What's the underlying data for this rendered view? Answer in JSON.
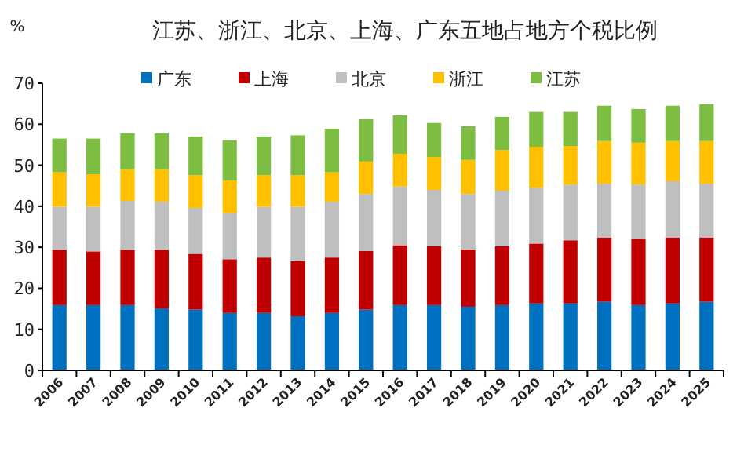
{
  "chart_data": {
    "type": "bar",
    "stacked": true,
    "title": "江苏、浙江、北京、上海、广东五地占地方个税比例",
    "ylabel": "%",
    "legend": "top",
    "grid": false,
    "categories": [
      "2006",
      "2007",
      "2008",
      "2009",
      "2010",
      "2011",
      "2012",
      "2013",
      "2014",
      "2015",
      "2016",
      "2017",
      "2018",
      "2019",
      "2020",
      "2021",
      "2022",
      "2023",
      "2024",
      "2025"
    ],
    "ylim": [
      0,
      70
    ],
    "yticks": [
      0,
      10,
      20,
      30,
      40,
      50,
      60,
      70
    ],
    "series": [
      {
        "name": "广东",
        "color": "#0070c0",
        "values": [
          15.9,
          15.9,
          15.9,
          15.1,
          14.8,
          14.0,
          14.0,
          13.2,
          14.0,
          14.8,
          15.9,
          15.9,
          15.5,
          15.9,
          16.3,
          16.3,
          16.7,
          15.9,
          16.3,
          16.7
        ]
      },
      {
        "name": "上海",
        "color": "#c00000",
        "values": [
          13.5,
          13.1,
          13.5,
          14.3,
          13.6,
          13.1,
          13.5,
          13.5,
          13.5,
          14.3,
          14.6,
          14.4,
          14.0,
          14.4,
          14.6,
          15.4,
          15.7,
          16.2,
          16.1,
          15.7
        ]
      },
      {
        "name": "北京",
        "color": "#bfbfbf",
        "values": [
          10.5,
          10.9,
          11.9,
          11.7,
          11.2,
          11.2,
          12.4,
          13.2,
          13.6,
          13.9,
          14.3,
          13.7,
          13.5,
          13.5,
          13.6,
          13.6,
          13.1,
          13.2,
          13.7,
          13.1
        ]
      },
      {
        "name": "浙江",
        "color": "#ffc000",
        "values": [
          8.4,
          7.9,
          7.7,
          7.9,
          8.0,
          8.0,
          7.7,
          7.7,
          7.2,
          7.9,
          8.0,
          8.0,
          8.3,
          9.9,
          10.0,
          9.4,
          10.4,
          10.2,
          9.8,
          10.4
        ]
      },
      {
        "name": "江苏",
        "color": "#7cbd42",
        "values": [
          8.2,
          8.7,
          8.8,
          8.8,
          9.4,
          9.8,
          9.4,
          9.7,
          10.6,
          10.3,
          9.4,
          8.3,
          8.2,
          8.1,
          8.5,
          8.3,
          8.6,
          8.2,
          8.6,
          9.0
        ]
      }
    ]
  }
}
